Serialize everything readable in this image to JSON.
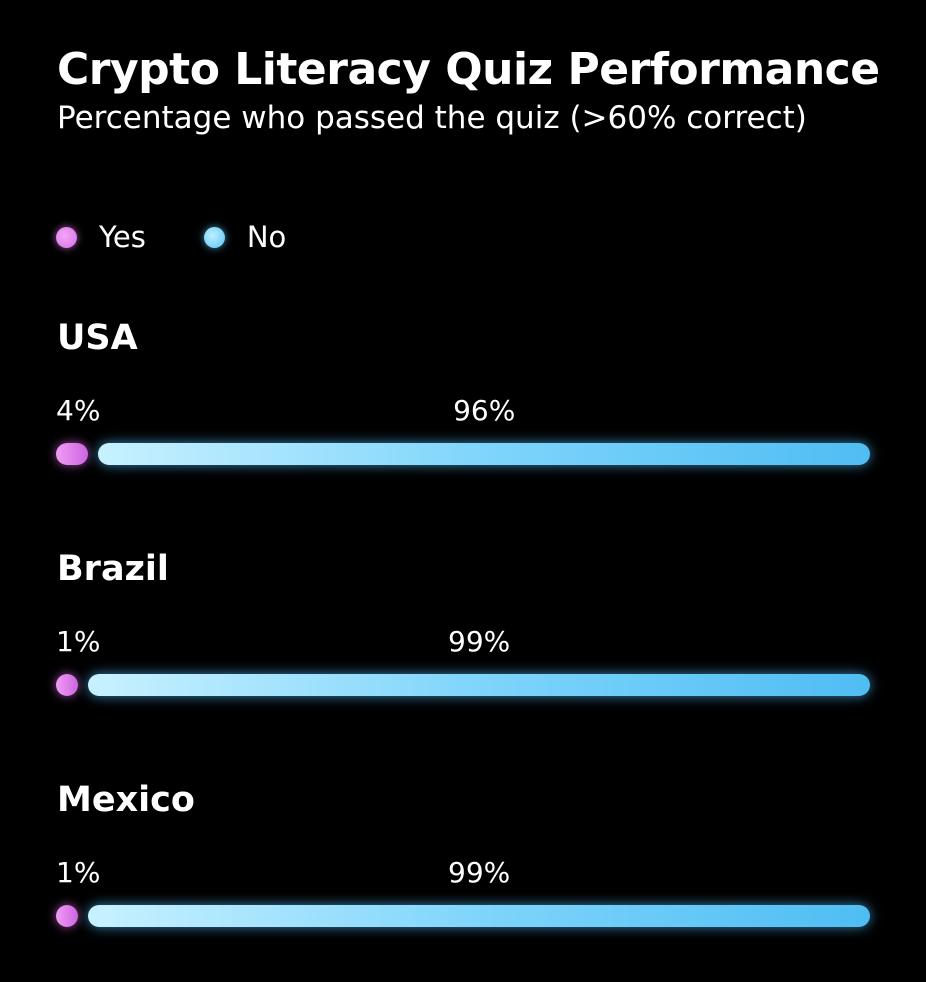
{
  "chart_data": {
    "type": "bar",
    "orientation": "horizontal",
    "stacked": true,
    "title": "Crypto Literacy Quiz Performance",
    "subtitle": "Percentage who passed the quiz (>60% correct)",
    "categories": [
      "USA",
      "Brazil",
      "Mexico"
    ],
    "series": [
      {
        "name": "Yes",
        "values": [
          4,
          1,
          1
        ],
        "labels": [
          "4%",
          "1%",
          "1%"
        ],
        "color": "#e07ef0"
      },
      {
        "name": "No",
        "values": [
          96,
          99,
          99
        ],
        "labels": [
          "96%",
          "99%",
          "99%"
        ],
        "color": "#6fcdf8"
      }
    ],
    "xlim": [
      0,
      100
    ],
    "legend_position": "top-left",
    "grid": false
  },
  "colors": {
    "background": "#000000",
    "text": "#ffffff",
    "yes": "#e07ef0",
    "no": "#6fcdf8"
  }
}
